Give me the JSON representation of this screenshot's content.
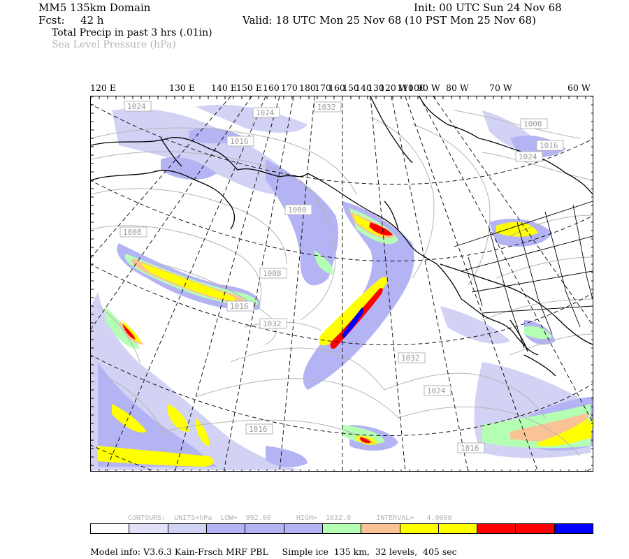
{
  "header": {
    "domain_title": "MM5 135km Domain",
    "forecast_label": "Fcst:",
    "forecast_hours": "42 h",
    "init_time": "Init: 00 UTC Sun 24 Nov 68",
    "valid_time": "Valid: 18 UTC Mon 25 Nov 68 (10 PST Mon 25 Nov 68)",
    "field_primary": "Total Precip in past 3 hrs (.01in)",
    "field_secondary": "Sea Level Pressure (hPa)"
  },
  "longitude_labels": [
    "120 E",
    "130 E",
    "140 E",
    "150 E",
    "160",
    "170",
    "180",
    "170",
    "160",
    "150",
    "140",
    "130",
    "120 W",
    "110",
    "100",
    "90 W",
    "80 W",
    "70 W",
    "60 W"
  ],
  "isobar_labels": [
    "1024",
    "1024",
    "1032",
    "1016",
    "1000",
    "1008",
    "1016",
    "1032",
    "1008",
    "1000",
    "1016",
    "1024",
    "1032",
    "1024",
    "1016",
    "1016"
  ],
  "colorbar": {
    "colors": [
      "#ffffff",
      "#e1e1fa",
      "#d2d2f5",
      "#b4b4f5",
      "#b4b4f5",
      "#b4b4f5",
      "#b4ffb4",
      "#fac396",
      "#ffff00",
      "#ffff00",
      "#ff0000",
      "#ff0000",
      "#0000ff"
    ]
  },
  "contours_info": "CONTOURS:  UNITS=hPa  LOW=  992.00      HIGH=  1032.0      INTERVAL=   4.0000",
  "model_info": "Model info: V3.6.3 Kain-Frsch MRF PBL     Simple ice  135 km,  32 levels,  405 sec",
  "colors": {
    "light_blue": "#d2d2f5",
    "blue": "#b4b4f5",
    "green": "#b4ffb4",
    "orange": "#fac396",
    "yellow": "#ffff00",
    "red": "#ff0000",
    "dark_blue": "#0000ff",
    "isobar_gray": "#b4b4b4"
  }
}
